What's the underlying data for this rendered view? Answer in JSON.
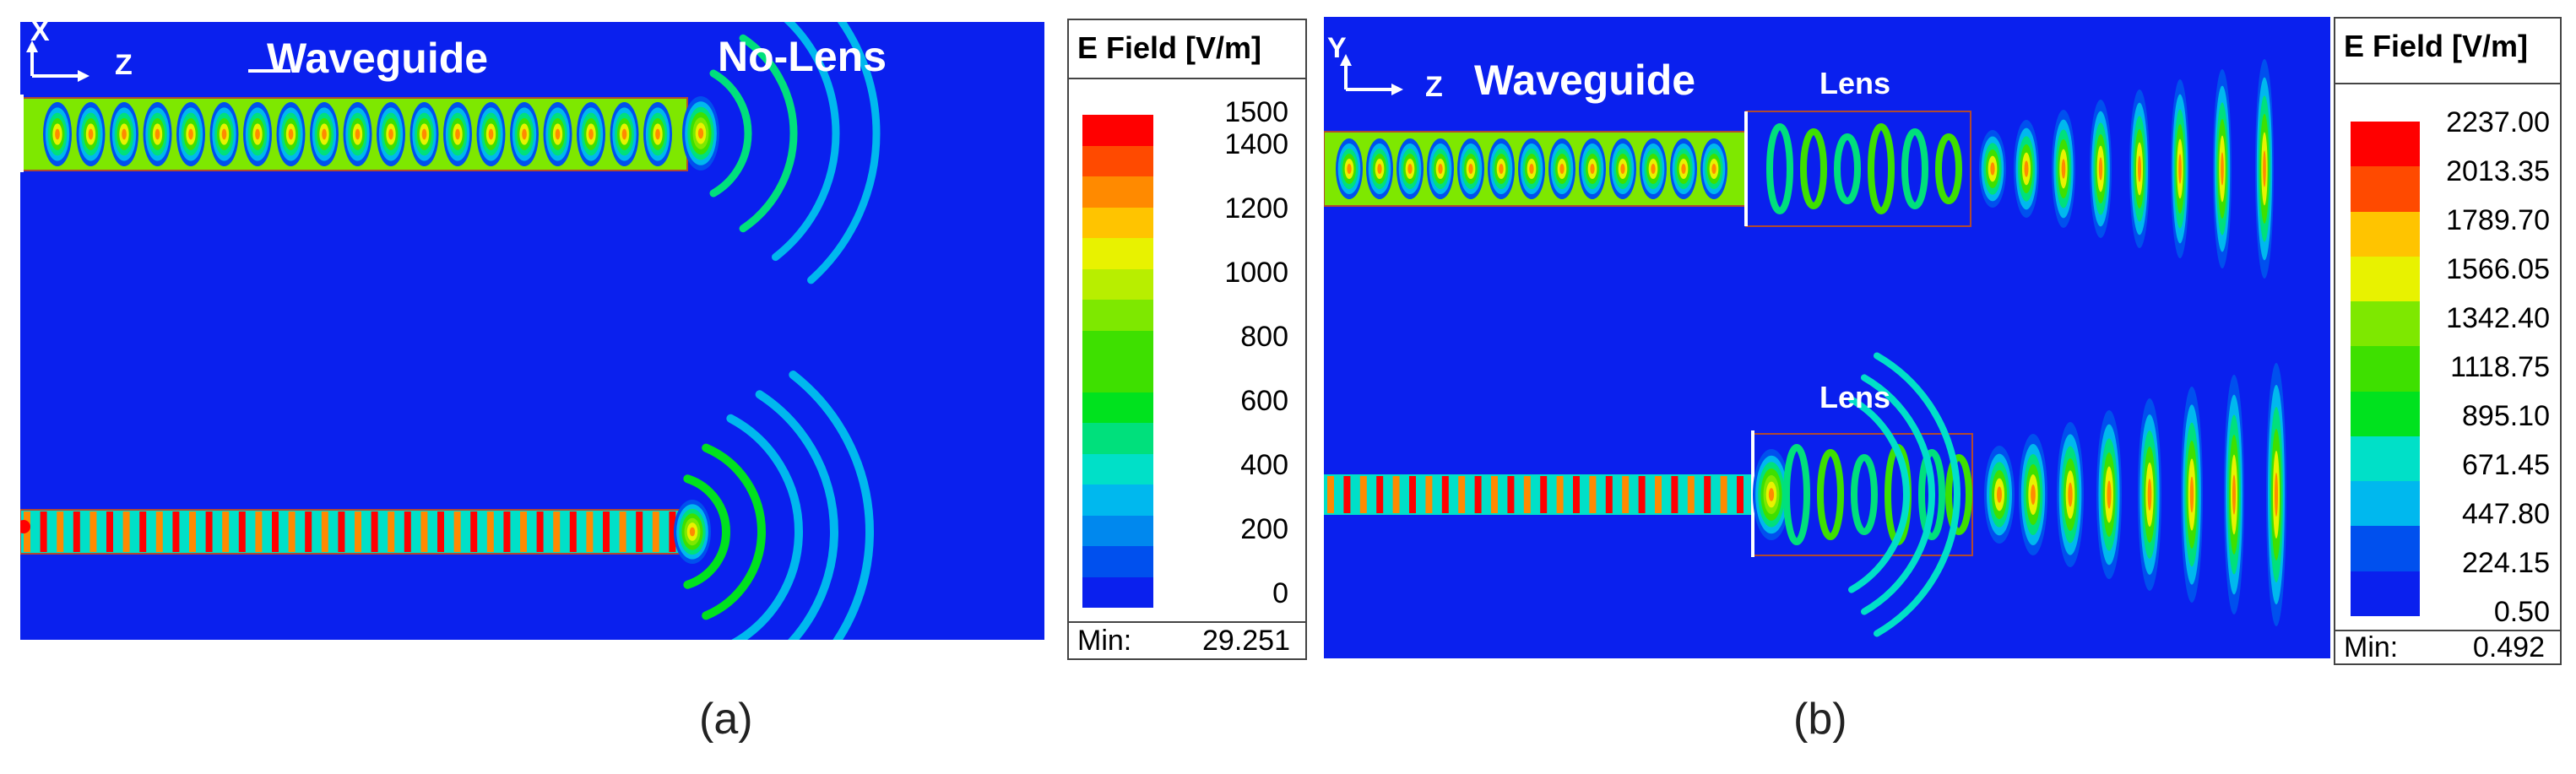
{
  "panels": [
    {
      "caption": "(a)",
      "axis": {
        "vertical": "X",
        "horizontal": "Z"
      },
      "labels": {
        "waveguide": "Waveguide",
        "lens": "No-Lens"
      },
      "legend": {
        "title": "E Field [V/m]",
        "ticks": [
          "1500",
          "1400",
          "1200",
          "1000",
          "800",
          "600",
          "400",
          "200",
          "0"
        ],
        "min_label": "Min:",
        "min_value": "29.251"
      }
    },
    {
      "caption": "(b)",
      "axis": {
        "vertical": "Y",
        "horizontal": "Z"
      },
      "labels": {
        "waveguide": "Waveguide",
        "lens_top": "Lens",
        "lens_bottom": "Lens"
      },
      "legend": {
        "title": "E Field [V/m]",
        "ticks": [
          "2237.00",
          "2013.35",
          "1789.70",
          "1566.05",
          "1342.40",
          "1118.75",
          "895.10",
          "671.45",
          "447.80",
          "224.15",
          "0.50"
        ],
        "min_label": "Min:",
        "min_value": "0.492"
      }
    }
  ],
  "colors": {
    "background_field": "#0a20ee",
    "scale": [
      "#ff0000",
      "#ff4a00",
      "#ff8a00",
      "#ffc400",
      "#e8f200",
      "#b8ee00",
      "#7ee800",
      "#3ee000",
      "#00e21e",
      "#00e07c",
      "#00e0c8",
      "#00b8ee",
      "#0088ee",
      "#0050ee",
      "#0a20ee"
    ]
  }
}
